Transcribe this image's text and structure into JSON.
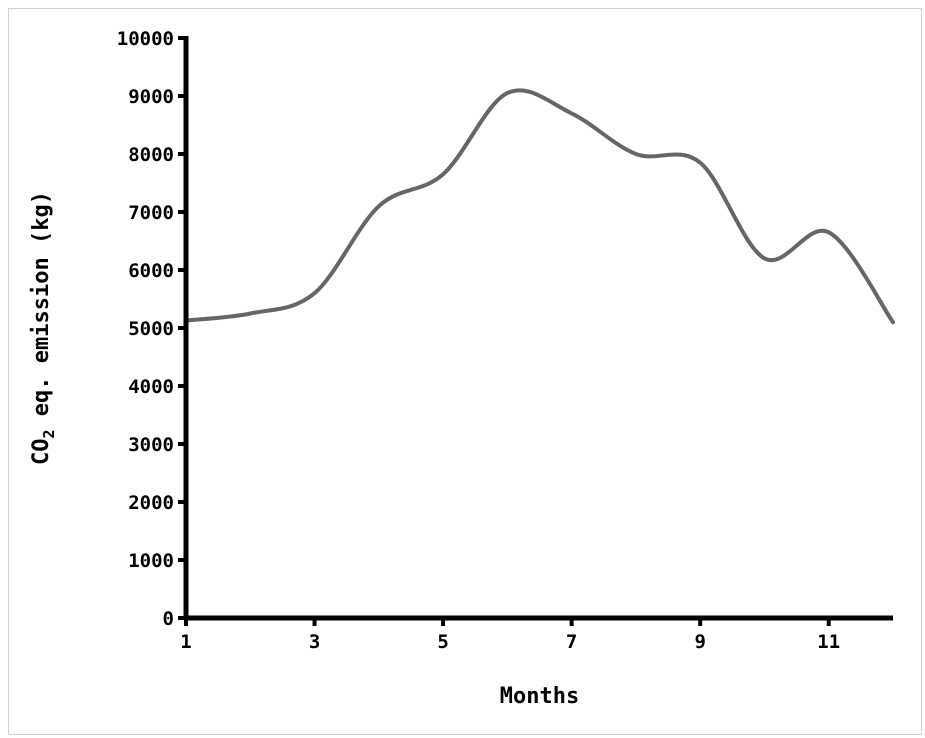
{
  "chart_data": {
    "type": "line",
    "title": "",
    "xlabel": "Months",
    "ylabel_main": "CO",
    "ylabel_sub": "2",
    "ylabel_rest": " eq. emission (kg)",
    "xlim": [
      1,
      12
    ],
    "ylim": [
      0,
      10000
    ],
    "x_ticks": [
      1,
      3,
      5,
      7,
      9,
      11
    ],
    "y_ticks": [
      0,
      1000,
      2000,
      3000,
      4000,
      5000,
      6000,
      7000,
      8000,
      9000,
      10000
    ],
    "grid": false,
    "legend": "none",
    "series": [
      {
        "color": "#666666",
        "x": [
          1,
          2,
          3,
          4,
          5,
          6,
          7,
          8,
          9,
          10,
          11,
          12
        ],
        "values": [
          5130,
          5250,
          5600,
          7100,
          7650,
          9050,
          8700,
          8000,
          7850,
          6200,
          6650,
          5100
        ]
      }
    ]
  }
}
